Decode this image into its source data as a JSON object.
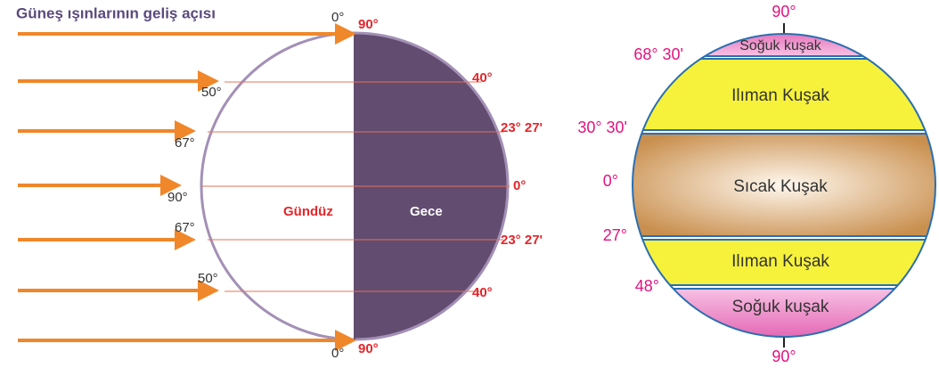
{
  "left": {
    "title": "Güneş ışınlarının geliş açısı",
    "top_zero": "0°",
    "bottom_zero": "0°",
    "angles": [
      "50°",
      "67°",
      "90°",
      "67°",
      "50°"
    ],
    "latitudes": [
      "90°",
      "40°",
      "23° 27'",
      "0°",
      "23° 27'",
      "40°",
      "90°"
    ],
    "day": "Gündüz",
    "night": "Gece"
  },
  "right": {
    "top": "90°",
    "bottom": "90°",
    "latitudes": [
      "68° 30'",
      "30° 30'",
      "0°",
      "27°",
      "48°"
    ],
    "zones": [
      "Soğuk kuşak",
      "Ilıman Kuşak",
      "Sıcak Kuşak",
      "Ilıman Kuşak",
      "Soğuk kuşak"
    ]
  }
}
